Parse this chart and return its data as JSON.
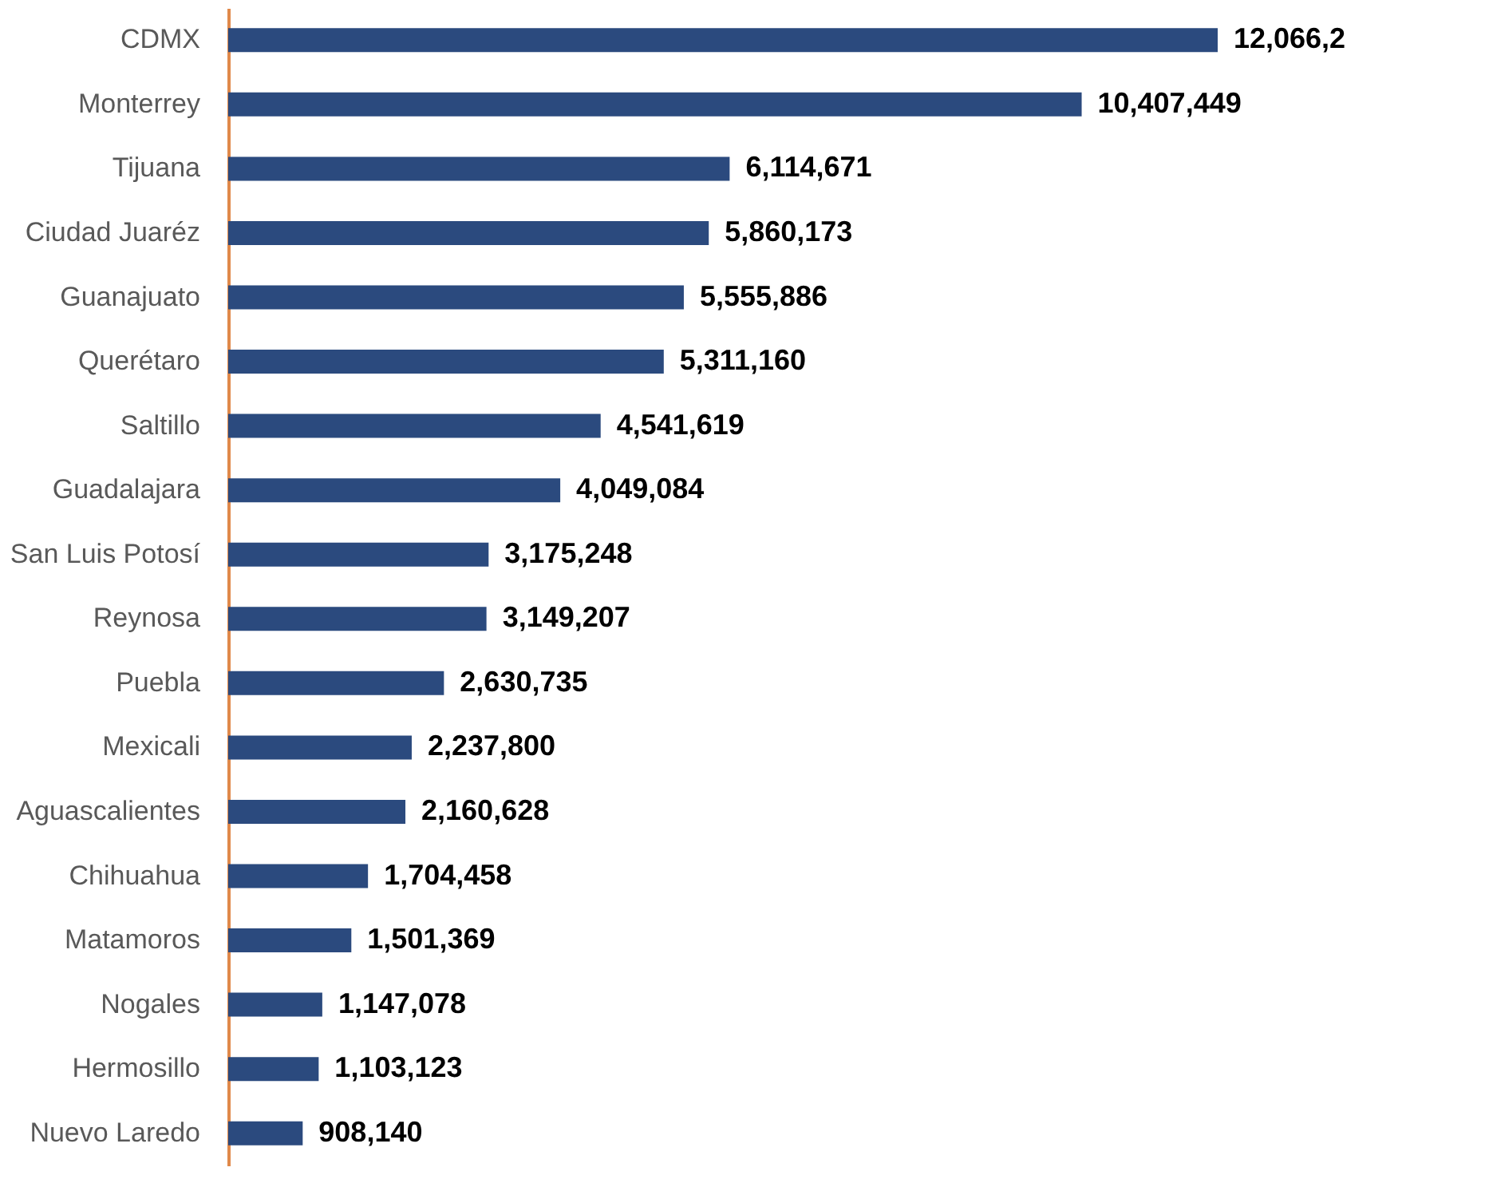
{
  "chart_data": {
    "type": "bar",
    "orientation": "horizontal",
    "color": "#2b4a7e",
    "categories": [
      "CDMX",
      "Monterrey",
      "Tijuana",
      "Ciudad Juaréz",
      "Guanajuato",
      "Querétaro",
      "Saltillo",
      "Guadalajara",
      "San Luis Potosí",
      "Reynosa",
      "Puebla",
      "Mexicali",
      "Aguascalientes",
      "Chihuahua",
      "Matamoros",
      "Nogales",
      "Hermosillo",
      "Nuevo Laredo"
    ],
    "values": [
      12066200,
      10407449,
      6114671,
      5860173,
      5555886,
      5311160,
      4541619,
      4049084,
      3175248,
      3149207,
      2630735,
      2237800,
      2160628,
      1704458,
      1501369,
      1147078,
      1103123,
      908140
    ],
    "value_labels": [
      "12,066,2",
      "10,407,449",
      "6,114,671",
      "5,860,173",
      "5,555,886",
      "5,311,160",
      "4,541,619",
      "4,049,084",
      "3,175,248",
      "3,149,207",
      "2,630,735",
      "2,237,800",
      "2,160,628",
      "1,704,458",
      "1,501,369",
      "1,147,078",
      "1,103,123",
      "908,140"
    ],
    "tick_labels": "y",
    "grid": false
  }
}
